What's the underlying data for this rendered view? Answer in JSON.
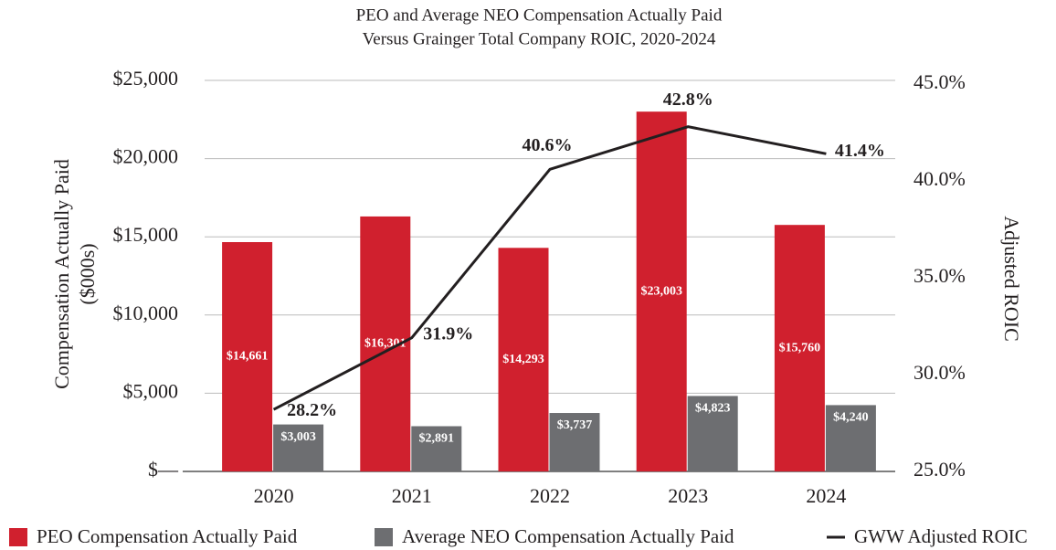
{
  "chart_data": {
    "type": "bar_line",
    "title": [
      "PEO and Average NEO Compensation Actually Paid",
      "Versus Grainger Total Company ROIC, 2020-2024"
    ],
    "y_label": [
      "Compensation Actually Paid",
      "($000s)"
    ],
    "y2_label": "Adjusted ROIC",
    "categories": [
      "2020",
      "2021",
      "2022",
      "2023",
      "2024"
    ],
    "series": [
      {
        "name": "PEO Compensation Actually Paid",
        "color": "#d0202e",
        "type": "bar",
        "values": [
          14661,
          16301,
          14293,
          23003,
          15760
        ],
        "value_labels": [
          "$14,661",
          "$16,301",
          "$14,293",
          "$23,003",
          "$15,760"
        ]
      },
      {
        "name": "Average NEO Compensation Actually Paid",
        "color": "#6d6e71",
        "type": "bar",
        "values": [
          3003,
          2891,
          3737,
          4823,
          4240
        ],
        "value_labels": [
          "$3,003",
          "$2,891",
          "$3,737",
          "$4,823",
          "$4,240"
        ]
      },
      {
        "name": "GWW Adjusted ROIC",
        "color": "#231f20",
        "type": "line",
        "axis": "y2",
        "values": [
          28.2,
          31.9,
          40.6,
          42.8,
          41.4
        ],
        "value_labels": [
          "28.2%",
          "31.9%",
          "40.6%",
          "42.8%",
          "41.4%"
        ]
      }
    ],
    "ylim": [
      0,
      25000
    ],
    "yticks": [
      {
        "value": 0,
        "label": "$—"
      },
      {
        "value": 5000,
        "label": "$5,000"
      },
      {
        "value": 10000,
        "label": "$10,000"
      },
      {
        "value": 15000,
        "label": "$15,000"
      },
      {
        "value": 20000,
        "label": "$20,000"
      },
      {
        "value": 25000,
        "label": "$25,000"
      }
    ],
    "y2lim": [
      25,
      45
    ],
    "y2ticks": [
      {
        "value": 25,
        "label": "25.0%"
      },
      {
        "value": 30,
        "label": "30.0%"
      },
      {
        "value": 35,
        "label": "35.0%"
      },
      {
        "value": 40,
        "label": "40.0%"
      },
      {
        "value": 45,
        "label": "45.0%"
      }
    ],
    "grid": true,
    "legend": "bottom"
  }
}
